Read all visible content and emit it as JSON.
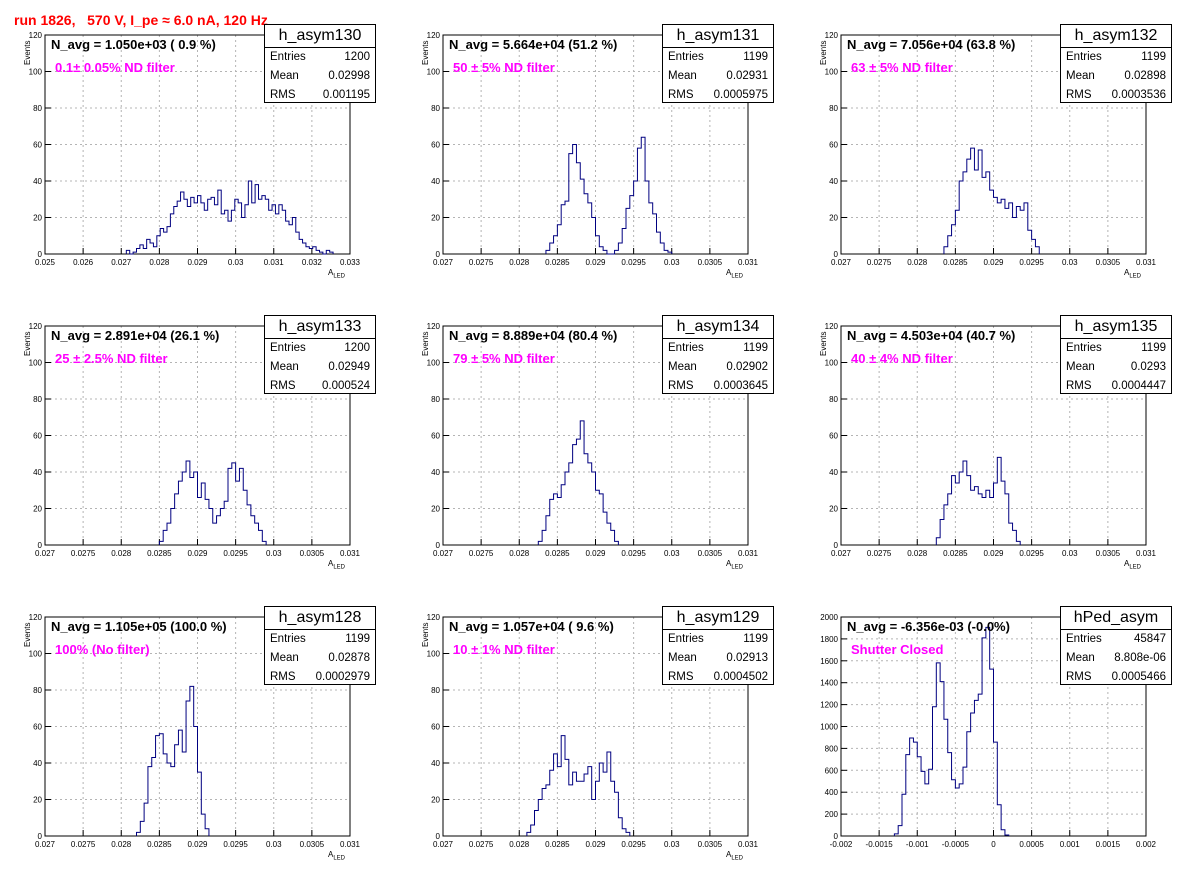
{
  "header": {
    "title": "run 1826,   570 V, I_pe ≈ 6.0 nA, 120 Hz"
  },
  "colors": {
    "title": "#ff0000",
    "filter_text": "#ff00ff",
    "histogram": "#000080",
    "grid": "#b4b4b4"
  },
  "axis_labels": {
    "y": "Events",
    "x_main": "A",
    "x_sub": "LED"
  },
  "panels": [
    {
      "name": "h_asym130",
      "navg": "N_avg = 1.050e+03 ( 0.9 %)",
      "filter": "0.1± 0.05% ND filter",
      "entries": "1200",
      "mean": "0.02998",
      "rms": "0.001195"
    },
    {
      "name": "h_asym131",
      "navg": "N_avg = 5.664e+04 (51.2 %)",
      "filter": "50 ± 5% ND filter",
      "entries": "1199",
      "mean": "0.02931",
      "rms": "0.0005975"
    },
    {
      "name": "h_asym132",
      "navg": "N_avg = 7.056e+04 (63.8 %)",
      "filter": "63 ± 5% ND filter",
      "entries": "1199",
      "mean": "0.02898",
      "rms": "0.0003536"
    },
    {
      "name": "h_asym133",
      "navg": "N_avg = 2.891e+04 (26.1 %)",
      "filter": "25 ± 2.5% ND filter",
      "entries": "1200",
      "mean": "0.02949",
      "rms": "0.000524"
    },
    {
      "name": "h_asym134",
      "navg": "N_avg = 8.889e+04 (80.4 %)",
      "filter": "79 ± 5% ND filter",
      "entries": "1199",
      "mean": "0.02902",
      "rms": "0.0003645"
    },
    {
      "name": "h_asym135",
      "navg": "N_avg = 4.503e+04 (40.7 %)",
      "filter": "40 ± 4% ND filter",
      "entries": "1199",
      "mean": "0.0293",
      "rms": "0.0004447"
    },
    {
      "name": "h_asym128",
      "navg": "N_avg = 1.105e+05 (100.0 %)",
      "filter": "100% (No filter)",
      "entries": "1199",
      "mean": "0.02878",
      "rms": "0.0002979"
    },
    {
      "name": "h_asym129",
      "navg": "N_avg = 1.057e+04 ( 9.6 %)",
      "filter": "10 ± 1% ND filter",
      "entries": "1199",
      "mean": "0.02913",
      "rms": "0.0004502"
    },
    {
      "name": "hPed_asym",
      "navg": "N_avg = -6.356e-03 (-0.0%)",
      "filter": "Shutter Closed",
      "entries": "45847",
      "mean": "8.808e-06",
      "rms": "0.0005466"
    }
  ],
  "chart_data": [
    {
      "type": "bar",
      "title": "h_asym130",
      "xlabel": "A_LED",
      "ylabel": "Events",
      "xlim": [
        0.0245,
        0.0335
      ],
      "ylim": [
        0,
        120
      ],
      "grid": true,
      "xticks": [
        "0.025",
        "0.026",
        "0.027",
        "0.028",
        "0.029",
        "0.03",
        "0.031",
        "0.032",
        "0.033"
      ],
      "yticks": [
        "0",
        "20",
        "40",
        "60",
        "80",
        "100",
        "120"
      ],
      "bin_start": 0.0269,
      "bin_width": 0.0001,
      "values": [
        2,
        0,
        1,
        3,
        5,
        3,
        8,
        6,
        4,
        10,
        14,
        12,
        15,
        22,
        26,
        29,
        34,
        30,
        26,
        31,
        28,
        32,
        28,
        24,
        30,
        31,
        27,
        35,
        22,
        24,
        18,
        24,
        30,
        28,
        20,
        27,
        40,
        28,
        38,
        30,
        32,
        30,
        24,
        27,
        22,
        27,
        24,
        18,
        16,
        20,
        12,
        8,
        6,
        4,
        3,
        4,
        2,
        1,
        0,
        2,
        1
      ]
    },
    {
      "type": "bar",
      "title": "h_asym131",
      "xlabel": "A_LED",
      "ylabel": "Events",
      "xlim": [
        0.027,
        0.031
      ],
      "ylim": [
        0,
        120
      ],
      "grid": true,
      "xticks": [
        "0.027",
        "0.0275",
        "0.028",
        "0.0285",
        "0.029",
        "0.0295",
        "0.03",
        "0.0305",
        "0.031"
      ],
      "yticks": [
        "0",
        "20",
        "40",
        "60",
        "80",
        "100",
        "120"
      ],
      "bin_start": 0.02835,
      "bin_width": 5e-05,
      "values": [
        2,
        6,
        10,
        16,
        27,
        29,
        55,
        60,
        50,
        41,
        33,
        28,
        20,
        10,
        4,
        2,
        0,
        0,
        2,
        6,
        14,
        25,
        32,
        40,
        58,
        64,
        40,
        28,
        22,
        12,
        6,
        2,
        1
      ]
    },
    {
      "type": "bar",
      "title": "h_asym132",
      "xlabel": "A_LED",
      "ylabel": "Events",
      "xlim": [
        0.027,
        0.031
      ],
      "ylim": [
        0,
        120
      ],
      "grid": true,
      "xticks": [
        "0.027",
        "0.0275",
        "0.028",
        "0.0285",
        "0.029",
        "0.0295",
        "0.03",
        "0.0305",
        "0.031"
      ],
      "yticks": [
        "0",
        "20",
        "40",
        "60",
        "80",
        "100",
        "120"
      ],
      "bin_start": 0.02835,
      "bin_width": 5e-05,
      "values": [
        4,
        10,
        16,
        24,
        40,
        45,
        52,
        58,
        46,
        57,
        42,
        45,
        35,
        31,
        28,
        30,
        25,
        28,
        20,
        26,
        24,
        28,
        13,
        8,
        4
      ]
    },
    {
      "type": "bar",
      "title": "h_asym133",
      "xlabel": "A_LED",
      "ylabel": "Events",
      "xlim": [
        0.027,
        0.031
      ],
      "ylim": [
        0,
        120
      ],
      "grid": true,
      "xticks": [
        "0.027",
        "0.0275",
        "0.028",
        "0.0285",
        "0.029",
        "0.0295",
        "0.03",
        "0.0305",
        "0.031"
      ],
      "yticks": [
        "0",
        "20",
        "40",
        "60",
        "80",
        "100",
        "120"
      ],
      "bin_start": 0.0285,
      "bin_width": 5e-05,
      "values": [
        2,
        8,
        12,
        20,
        28,
        35,
        40,
        46,
        37,
        40,
        26,
        34,
        25,
        20,
        12,
        16,
        20,
        24,
        42,
        45,
        35,
        42,
        30,
        22,
        16,
        12,
        8,
        2
      ]
    },
    {
      "type": "bar",
      "title": "h_asym134",
      "xlabel": "A_LED",
      "ylabel": "Events",
      "xlim": [
        0.027,
        0.031
      ],
      "ylim": [
        0,
        120
      ],
      "grid": true,
      "xticks": [
        "0.027",
        "0.0275",
        "0.028",
        "0.0285",
        "0.029",
        "0.0295",
        "0.03",
        "0.0305",
        "0.031"
      ],
      "yticks": [
        "0",
        "20",
        "40",
        "60",
        "80",
        "100",
        "120"
      ],
      "bin_start": 0.02825,
      "bin_width": 5e-05,
      "values": [
        2,
        8,
        16,
        25,
        28,
        26,
        33,
        40,
        45,
        55,
        58,
        68,
        50,
        45,
        40,
        30,
        28,
        18,
        12,
        8,
        2
      ]
    },
    {
      "type": "bar",
      "title": "h_asym135",
      "xlabel": "A_LED",
      "ylabel": "Events",
      "xlim": [
        0.027,
        0.031
      ],
      "ylim": [
        0,
        120
      ],
      "grid": true,
      "xticks": [
        "0.027",
        "0.0275",
        "0.028",
        "0.0285",
        "0.029",
        "0.0295",
        "0.03",
        "0.0305",
        "0.031"
      ],
      "yticks": [
        "0",
        "20",
        "40",
        "60",
        "80",
        "100",
        "120"
      ],
      "bin_start": 0.02825,
      "bin_width": 5e-05,
      "values": [
        4,
        14,
        22,
        28,
        38,
        34,
        40,
        46,
        38,
        30,
        32,
        28,
        26,
        30,
        26,
        34,
        48,
        35,
        28,
        12,
        8,
        2
      ]
    },
    {
      "type": "bar",
      "title": "h_asym128",
      "xlabel": "A_LED",
      "ylabel": "Events",
      "xlim": [
        0.027,
        0.031
      ],
      "ylim": [
        0,
        120
      ],
      "grid": true,
      "xticks": [
        "0.027",
        "0.0275",
        "0.028",
        "0.0285",
        "0.029",
        "0.0295",
        "0.03",
        "0.0305",
        "0.031"
      ],
      "yticks": [
        "0",
        "20",
        "40",
        "60",
        "80",
        "100",
        "120"
      ],
      "bin_start": 0.0282,
      "bin_width": 5e-05,
      "values": [
        2,
        8,
        18,
        38,
        43,
        55,
        56,
        45,
        40,
        38,
        50,
        58,
        46,
        74,
        82,
        60,
        35,
        12,
        4
      ]
    },
    {
      "type": "bar",
      "title": "h_asym129",
      "xlabel": "A_LED",
      "ylabel": "Events",
      "xlim": [
        0.027,
        0.031
      ],
      "ylim": [
        0,
        120
      ],
      "grid": true,
      "xticks": [
        "0.027",
        "0.0275",
        "0.028",
        "0.0285",
        "0.029",
        "0.0295",
        "0.03",
        "0.0305",
        "0.031"
      ],
      "yticks": [
        "0",
        "20",
        "40",
        "60",
        "80",
        "100",
        "120"
      ],
      "bin_start": 0.0281,
      "bin_width": 5e-05,
      "values": [
        2,
        6,
        14,
        20,
        26,
        28,
        36,
        45,
        38,
        55,
        42,
        28,
        35,
        30,
        30,
        34,
        38,
        20,
        30,
        40,
        35,
        46,
        30,
        24,
        10,
        4,
        2
      ]
    },
    {
      "type": "bar",
      "title": "hPed_asym",
      "xlabel": "",
      "ylabel": "",
      "xlim": [
        -0.002,
        0.002
      ],
      "ylim": [
        0,
        2100
      ],
      "grid": true,
      "xticks": [
        "-0.002",
        "-0.0015",
        "-0.001",
        "-0.0005",
        "0",
        "0.0005",
        "0.001",
        "0.0015",
        "0.002"
      ],
      "yticks": [
        "0",
        "200",
        "400",
        "600",
        "800",
        "1000",
        "1200",
        "1400",
        "1600",
        "1800",
        "2000"
      ],
      "bin_start": -0.0013,
      "bin_width": 5e-05,
      "values": [
        20,
        100,
        400,
        780,
        940,
        900,
        760,
        620,
        500,
        640,
        1240,
        1660,
        1480,
        1120,
        800,
        540,
        460,
        500,
        660,
        1000,
        1180,
        1300,
        1360,
        1900,
        2000,
        1600,
        900,
        300,
        60,
        10
      ]
    }
  ]
}
